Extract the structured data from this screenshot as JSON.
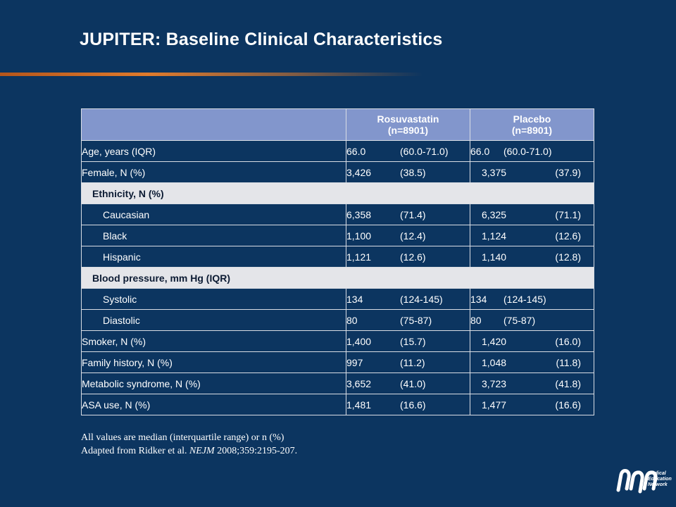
{
  "slide": {
    "title": "JUPITER: Baseline Clinical Characteristics"
  },
  "table": {
    "headers": {
      "col1_name": "Rosuvastatin",
      "col1_n": "(n=8901)",
      "col2_name": "Placebo",
      "col2_n": "(n=8901)"
    },
    "rows": [
      {
        "label": "Age, years (IQR)",
        "type": "data",
        "r_n": "66.0",
        "r_p": "(60.0-71.0)",
        "p_n": "66.0",
        "p_p": "(60.0-71.0)",
        "p_align": "near"
      },
      {
        "label": "Female, N (%)",
        "type": "data",
        "r_n": "3,426",
        "r_p": "(38.5)",
        "p_n": "3,375",
        "p_p": "(37.9)",
        "p_align": "right"
      },
      {
        "label": "Ethnicity, N (%)",
        "type": "section"
      },
      {
        "label": "Caucasian",
        "type": "sub",
        "r_n": "6,358",
        "r_p": "(71.4)",
        "p_n": "6,325",
        "p_p": "(71.1)",
        "p_align": "right"
      },
      {
        "label": "Black",
        "type": "sub",
        "r_n": "1,100",
        "r_p": "(12.4)",
        "p_n": "1,124",
        "p_p": "(12.6)",
        "p_align": "right"
      },
      {
        "label": "Hispanic",
        "type": "sub",
        "r_n": "1,121",
        "r_p": "(12.6)",
        "p_n": "1,140",
        "p_p": "(12.8)",
        "p_align": "right"
      },
      {
        "label": "Blood pressure, mm Hg (IQR)",
        "type": "section"
      },
      {
        "label": "Systolic",
        "type": "sub",
        "r_n": "134",
        "r_p": "(124-145)",
        "p_n": "134",
        "p_p": "(124-145)",
        "p_align": "near"
      },
      {
        "label": "Diastolic",
        "type": "sub",
        "r_n": "80",
        "r_p": "(75-87)",
        "p_n": "80",
        "p_p": "(75-87)",
        "p_align": "near"
      },
      {
        "label": "Smoker, N (%)",
        "type": "data",
        "r_n": "1,400",
        "r_p": "(15.7)",
        "p_n": "1,420",
        "p_p": "(16.0)",
        "p_align": "right"
      },
      {
        "label": "Family history, N (%)",
        "type": "data",
        "r_n": "997",
        "r_p": "(11.2)",
        "p_n": "1,048",
        "p_p": "(11.8)",
        "p_align": "right"
      },
      {
        "label": "Metabolic syndrome, N (%)",
        "type": "data",
        "r_n": "3,652",
        "r_p": "(41.0)",
        "p_n": "3,723",
        "p_p": "(41.8)",
        "p_align": "right"
      },
      {
        "label": "ASA use, N (%)",
        "type": "data",
        "r_n": "1,481",
        "r_p": "(16.6)",
        "p_n": "1,477",
        "p_p": "(16.6)",
        "p_align": "right"
      }
    ]
  },
  "footnote": {
    "line1": "All values are median (interquartile range) or n (%)",
    "line2_prefix": "Adapted from Ridker et al. ",
    "line2_journal": "NEJM",
    "line2_suffix": " 2008;359:2195-207."
  },
  "logo": {
    "icon": "mmn-logo-icon",
    "line1": "Medical",
    "line2": "Education",
    "line3": "Network"
  },
  "colors": {
    "background": "#0c3560",
    "header": "#8296cc",
    "section_row": "#e4e5e9",
    "accent_rule": "#e07b2c"
  }
}
